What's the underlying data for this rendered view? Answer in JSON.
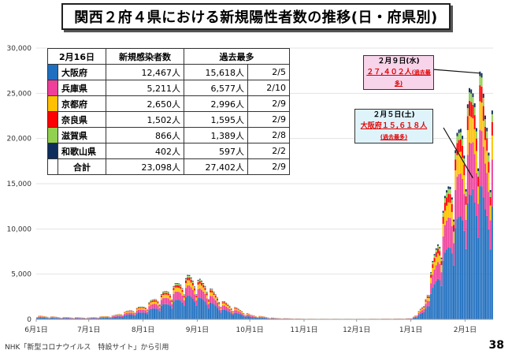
{
  "title": "関西２府４県における新規陽性者数の推移(日・府県別)",
  "footer": "NHK「新型コロナウイルス　特設サイト」から引用",
  "page_number": "38",
  "table": {
    "header": [
      "2月16日",
      "新規感染者数",
      "過去最多"
    ],
    "rows": [
      {
        "name": "大阪府",
        "color": "#1f6fc0",
        "new": "12,467人",
        "max": "15,618人",
        "max_date": "2/5"
      },
      {
        "name": "兵庫県",
        "color": "#ee3f9a",
        "new": "5,211人",
        "max": "6,577人",
        "max_date": "2/10"
      },
      {
        "name": "京都府",
        "color": "#ffc000",
        "new": "2,650人",
        "max": "2,996人",
        "max_date": "2/9"
      },
      {
        "name": "奈良県",
        "color": "#ff0000",
        "new": "1,502人",
        "max": "1,595人",
        "max_date": "2/9"
      },
      {
        "name": "滋賀県",
        "color": "#92d050",
        "new": "866人",
        "max": "1,389人",
        "max_date": "2/8"
      },
      {
        "name": "和歌山県",
        "color": "#0f2d5c",
        "new": "402人",
        "max": "597人",
        "max_date": "2/2"
      }
    ],
    "total": {
      "name": "合計",
      "new": "23,098人",
      "max": "27,402人",
      "max_date": "2/9"
    }
  },
  "callouts": [
    {
      "date": "２月９日(水)",
      "text": "２７,４０２人",
      "note": "(過去最多)"
    },
    {
      "date": "２月５日(土)",
      "text": "大阪府１５,６１８人",
      "note": "(過去最多)"
    }
  ],
  "chart_data": {
    "type": "bar",
    "stacked": true,
    "title": "関西２府４県における新規陽性者数の推移(日・府県別)",
    "xlabel": "",
    "ylabel": "",
    "ylim": [
      0,
      30000
    ],
    "yticks": [
      "0",
      "5,000",
      "10,000",
      "15,000",
      "20,000",
      "25,000",
      "30,000"
    ],
    "xticks": [
      "6月1日",
      "7月1日",
      "8月1日",
      "9月1日",
      "10月1日",
      "11月1日",
      "12月1日",
      "1月1日",
      "2月1日"
    ],
    "start_date": "2021-06-01",
    "end_date": "2022-02-16",
    "series": [
      {
        "name": "大阪府",
        "color": "#1f6fc0",
        "share": 0.54
      },
      {
        "name": "兵庫県",
        "color": "#ee3f9a",
        "share": 0.225
      },
      {
        "name": "京都府",
        "color": "#ffc000",
        "share": 0.115
      },
      {
        "name": "奈良県",
        "color": "#ff0000",
        "share": 0.065
      },
      {
        "name": "滋賀県",
        "color": "#92d050",
        "share": 0.037
      },
      {
        "name": "和歌山県",
        "color": "#0f2d5c",
        "share": 0.018
      }
    ],
    "total_keypoints": [
      [
        "2021-06-01",
        400
      ],
      [
        "2021-06-15",
        250
      ],
      [
        "2021-07-01",
        200
      ],
      [
        "2021-07-15",
        450
      ],
      [
        "2021-08-01",
        1500
      ],
      [
        "2021-08-15",
        3300
      ],
      [
        "2021-08-27",
        4800
      ],
      [
        "2021-09-05",
        4000
      ],
      [
        "2021-09-15",
        2000
      ],
      [
        "2021-10-01",
        500
      ],
      [
        "2021-10-15",
        150
      ],
      [
        "2021-11-01",
        60
      ],
      [
        "2021-12-01",
        50
      ],
      [
        "2021-12-25",
        80
      ],
      [
        "2022-01-01",
        120
      ],
      [
        "2022-01-08",
        1500
      ],
      [
        "2022-01-15",
        8000
      ],
      [
        "2022-01-22",
        15000
      ],
      [
        "2022-01-29",
        21500
      ],
      [
        "2022-02-05",
        25500
      ],
      [
        "2022-02-09",
        27402
      ],
      [
        "2022-02-12",
        23000
      ],
      [
        "2022-02-16",
        23098
      ]
    ],
    "peak": {
      "date": "2022-02-09",
      "value": 27402
    },
    "osaka_peak": {
      "date": "2022-02-05",
      "value": 15618
    }
  }
}
